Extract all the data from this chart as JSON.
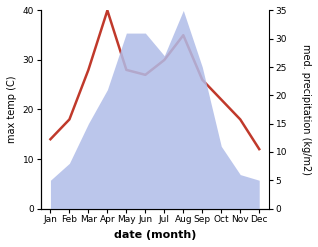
{
  "months": [
    "Jan",
    "Feb",
    "Mar",
    "Apr",
    "May",
    "Jun",
    "Jul",
    "Aug",
    "Sep",
    "Oct",
    "Nov",
    "Dec"
  ],
  "month_x": [
    1,
    2,
    3,
    4,
    5,
    6,
    7,
    8,
    9,
    10,
    11,
    12
  ],
  "temp": [
    14,
    18,
    28,
    40,
    28,
    27,
    30,
    35,
    26,
    22,
    18,
    12
  ],
  "precip": [
    5,
    8,
    15,
    21,
    31,
    31,
    27,
    35,
    25,
    11,
    6,
    5
  ],
  "temp_color": "#c0392b",
  "precip_color": "#b0bce8",
  "precip_line_color": "#8898d0",
  "xlabel": "date (month)",
  "ylabel_left": "max temp (C)",
  "ylabel_right": "med. precipitation (kg/m2)",
  "ylim_left": [
    0,
    40
  ],
  "ylim_right": [
    0,
    35
  ],
  "yticks_left": [
    0,
    10,
    20,
    30,
    40
  ],
  "yticks_right": [
    0,
    5,
    10,
    15,
    20,
    25,
    30,
    35
  ],
  "bg_color": "#ffffff",
  "fig_color": "#ffffff",
  "temp_linewidth": 1.8,
  "xlabel_fontsize": 8,
  "ylabel_fontsize": 7,
  "tick_fontsize": 6.5
}
